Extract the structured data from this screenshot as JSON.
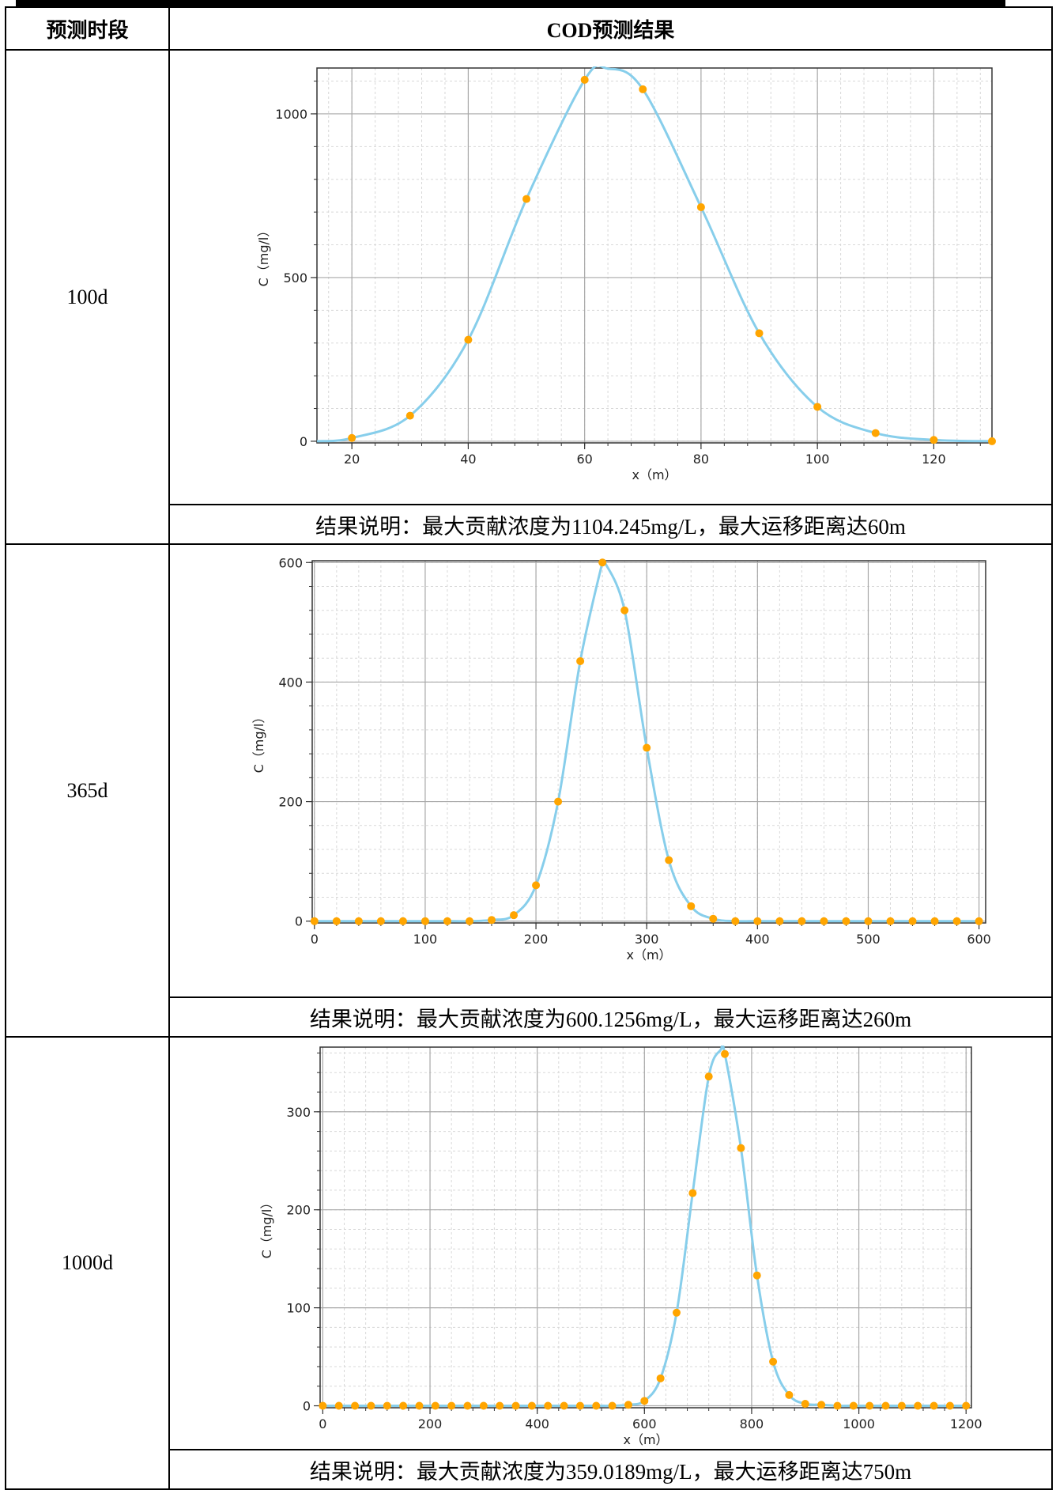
{
  "table": {
    "header": {
      "period": "预测时段",
      "result": "COD预测结果"
    },
    "rows": [
      {
        "period": "100d",
        "note": "结果说明：最大贡献浓度为1104.245mg/L，最大运移距离达60m"
      },
      {
        "period": "365d",
        "note": "结果说明：最大贡献浓度为600.1256mg/L，最大运移距离达260m"
      },
      {
        "period": "1000d",
        "note": "结果说明：最大贡献浓度为359.0189mg/L，最大运移距离达750m"
      }
    ]
  },
  "colors": {
    "curve": "#87CEEB",
    "points": "#FFA500",
    "grid_major": "#a8a8a8",
    "grid_minor": "#d8d8d8"
  },
  "chart_data": [
    {
      "type": "line",
      "xlabel": "x（m）",
      "ylabel": "C（mg/l）",
      "xlim": [
        14,
        130
      ],
      "ylim": [
        -5,
        1140
      ],
      "xticks": [
        20,
        40,
        60,
        80,
        100,
        120
      ],
      "yticks": [
        0,
        500,
        1000
      ],
      "grid": true,
      "peak": {
        "x": 64,
        "y": 1138
      },
      "points": [
        {
          "x": 20,
          "y": 10
        },
        {
          "x": 30,
          "y": 78
        },
        {
          "x": 40,
          "y": 310
        },
        {
          "x": 50,
          "y": 740
        },
        {
          "x": 60,
          "y": 1104
        },
        {
          "x": 70,
          "y": 1075
        },
        {
          "x": 80,
          "y": 715
        },
        {
          "x": 90,
          "y": 330
        },
        {
          "x": 100,
          "y": 105
        },
        {
          "x": 110,
          "y": 25
        },
        {
          "x": 120,
          "y": 4
        },
        {
          "x": 130,
          "y": 0
        }
      ]
    },
    {
      "type": "line",
      "xlabel": "x（m）",
      "ylabel": "C（mg/l）",
      "xlim": [
        -2,
        606
      ],
      "ylim": [
        -3,
        603
      ],
      "xticks": [
        0,
        100,
        200,
        300,
        400,
        500,
        600
      ],
      "yticks": [
        0,
        200,
        400,
        600
      ],
      "grid": true,
      "peak": {
        "x": 262,
        "y": 601
      },
      "points": [
        {
          "x": 0,
          "y": 0
        },
        {
          "x": 20,
          "y": 0
        },
        {
          "x": 40,
          "y": 0
        },
        {
          "x": 60,
          "y": 0
        },
        {
          "x": 80,
          "y": 0
        },
        {
          "x": 100,
          "y": 0
        },
        {
          "x": 120,
          "y": 0
        },
        {
          "x": 140,
          "y": 0
        },
        {
          "x": 160,
          "y": 2
        },
        {
          "x": 180,
          "y": 10
        },
        {
          "x": 200,
          "y": 60
        },
        {
          "x": 220,
          "y": 200
        },
        {
          "x": 240,
          "y": 435
        },
        {
          "x": 260,
          "y": 600
        },
        {
          "x": 280,
          "y": 520
        },
        {
          "x": 300,
          "y": 290
        },
        {
          "x": 320,
          "y": 102
        },
        {
          "x": 340,
          "y": 25
        },
        {
          "x": 360,
          "y": 4
        },
        {
          "x": 380,
          "y": 0
        },
        {
          "x": 400,
          "y": 0
        },
        {
          "x": 420,
          "y": 0
        },
        {
          "x": 440,
          "y": 0
        },
        {
          "x": 460,
          "y": 0
        },
        {
          "x": 480,
          "y": 0
        },
        {
          "x": 500,
          "y": 0
        },
        {
          "x": 520,
          "y": 0
        },
        {
          "x": 540,
          "y": 0
        },
        {
          "x": 560,
          "y": 0
        },
        {
          "x": 580,
          "y": 0
        },
        {
          "x": 600,
          "y": 0
        }
      ]
    },
    {
      "type": "line",
      "xlabel": "x（m）",
      "ylabel": "C（mg/l）",
      "xlim": [
        -5,
        1210
      ],
      "ylim": [
        -2,
        366
      ],
      "xticks": [
        0,
        200,
        400,
        600,
        800,
        1000,
        1200
      ],
      "yticks": [
        0,
        100,
        200,
        300
      ],
      "grid": true,
      "peak": {
        "x": 742,
        "y": 363
      },
      "points": [
        {
          "x": 0,
          "y": 0
        },
        {
          "x": 30,
          "y": 0
        },
        {
          "x": 60,
          "y": 0
        },
        {
          "x": 90,
          "y": 0
        },
        {
          "x": 120,
          "y": 0
        },
        {
          "x": 150,
          "y": 0
        },
        {
          "x": 180,
          "y": 0
        },
        {
          "x": 210,
          "y": 0
        },
        {
          "x": 240,
          "y": 0
        },
        {
          "x": 270,
          "y": 0
        },
        {
          "x": 300,
          "y": 0
        },
        {
          "x": 330,
          "y": 0
        },
        {
          "x": 360,
          "y": 0
        },
        {
          "x": 390,
          "y": 0
        },
        {
          "x": 420,
          "y": 0
        },
        {
          "x": 450,
          "y": 0
        },
        {
          "x": 480,
          "y": 0
        },
        {
          "x": 510,
          "y": 0
        },
        {
          "x": 540,
          "y": 0
        },
        {
          "x": 570,
          "y": 1
        },
        {
          "x": 600,
          "y": 5
        },
        {
          "x": 630,
          "y": 28
        },
        {
          "x": 660,
          "y": 95
        },
        {
          "x": 690,
          "y": 217
        },
        {
          "x": 720,
          "y": 336
        },
        {
          "x": 750,
          "y": 359
        },
        {
          "x": 780,
          "y": 263
        },
        {
          "x": 810,
          "y": 133
        },
        {
          "x": 840,
          "y": 45
        },
        {
          "x": 870,
          "y": 11
        },
        {
          "x": 900,
          "y": 2
        },
        {
          "x": 930,
          "y": 1
        },
        {
          "x": 960,
          "y": 0
        },
        {
          "x": 990,
          "y": 0
        },
        {
          "x": 1020,
          "y": 0
        },
        {
          "x": 1050,
          "y": 0
        },
        {
          "x": 1080,
          "y": 0
        },
        {
          "x": 1110,
          "y": 0
        },
        {
          "x": 1140,
          "y": 0
        },
        {
          "x": 1170,
          "y": 0
        },
        {
          "x": 1200,
          "y": 0
        }
      ]
    }
  ]
}
